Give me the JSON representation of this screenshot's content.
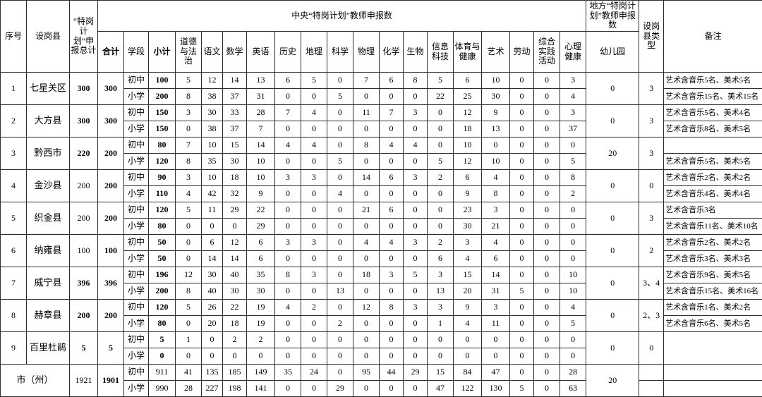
{
  "table": {
    "header": {
      "seq": "序号",
      "county": "设岗县",
      "plan_total": "“特岗计划”申报总计",
      "central_group": "中央“特岗计划”教师申报数",
      "total": "合计",
      "stage": "学段",
      "subtotal": "小计",
      "subjects": [
        "道德与法治",
        "语文",
        "数学",
        "英语",
        "历史",
        "地理",
        "科学",
        "物理",
        "化学",
        "生物",
        "信息科技",
        "体育与健康",
        "艺术",
        "劳动",
        "综合实践活动",
        "心理健康"
      ],
      "local_group": "地方“特岗计划”教师申报数",
      "kindergarten": "幼儿园",
      "county_type": "设岗县类型",
      "remarks": "备注"
    },
    "rows": [
      {
        "seq": "1",
        "county": "七星关区",
        "plan_total": "300",
        "plan_total_bold": true,
        "total": "300",
        "kindergarten": "0",
        "county_type": "3",
        "remark_merged": false,
        "stages": [
          {
            "stage": "初中",
            "subtotal": "100",
            "values": [
              "5",
              "12",
              "14",
              "13",
              "6",
              "5",
              "0",
              "7",
              "6",
              "8",
              "5",
              "6",
              "10",
              "0",
              "0",
              "3"
            ],
            "remark": "艺术含音乐5名、美术5名"
          },
          {
            "stage": "小学",
            "subtotal": "200",
            "values": [
              "8",
              "38",
              "37",
              "31",
              "0",
              "0",
              "5",
              "0",
              "0",
              "0",
              "22",
              "25",
              "30",
              "0",
              "0",
              "4"
            ],
            "remark": "艺术含音乐15名、美术15名"
          }
        ]
      },
      {
        "seq": "2",
        "county": "大方县",
        "plan_total": "300",
        "plan_total_bold": true,
        "total": "300",
        "kindergarten": "0",
        "county_type": "3",
        "remark_merged": false,
        "stages": [
          {
            "stage": "初中",
            "subtotal": "150",
            "values": [
              "3",
              "30",
              "33",
              "28",
              "7",
              "4",
              "0",
              "11",
              "7",
              "3",
              "0",
              "12",
              "9",
              "0",
              "0",
              "3"
            ],
            "remark": "艺术含音乐5名、美术4名"
          },
          {
            "stage": "小学",
            "subtotal": "150",
            "values": [
              "0",
              "38",
              "37",
              "7",
              "0",
              "0",
              "0",
              "0",
              "0",
              "0",
              "0",
              "18",
              "13",
              "0",
              "0",
              "37"
            ],
            "remark": "艺术含音乐8名、美术5名"
          }
        ]
      },
      {
        "seq": "3",
        "county": "黔西市",
        "plan_total": "220",
        "plan_total_bold": true,
        "total": "200",
        "kindergarten": "20",
        "county_type": "3",
        "remark_merged": false,
        "stages": [
          {
            "stage": "初中",
            "subtotal": "80",
            "values": [
              "7",
              "10",
              "15",
              "14",
              "4",
              "4",
              "0",
              "8",
              "4",
              "4",
              "0",
              "10",
              "0",
              "0",
              "0",
              "0"
            ],
            "remark": ""
          },
          {
            "stage": "小学",
            "subtotal": "120",
            "values": [
              "8",
              "35",
              "30",
              "10",
              "0",
              "0",
              "5",
              "0",
              "0",
              "0",
              "5",
              "12",
              "10",
              "0",
              "0",
              "5"
            ],
            "remark": "艺术含音乐5名、美术5名"
          }
        ]
      },
      {
        "seq": "4",
        "county": "金沙县",
        "plan_total": "200",
        "plan_total_bold": false,
        "total": "200",
        "kindergarten": "0",
        "county_type": "0",
        "remark_merged": false,
        "stages": [
          {
            "stage": "初中",
            "subtotal": "90",
            "values": [
              "3",
              "10",
              "18",
              "10",
              "3",
              "3",
              "0",
              "14",
              "6",
              "3",
              "2",
              "6",
              "4",
              "0",
              "0",
              "8"
            ],
            "remark": "艺术含音乐2名、美术2名"
          },
          {
            "stage": "小学",
            "subtotal": "110",
            "values": [
              "4",
              "42",
              "32",
              "9",
              "0",
              "0",
              "4",
              "0",
              "0",
              "0",
              "0",
              "9",
              "8",
              "0",
              "0",
              "2"
            ],
            "remark": "艺术含音乐4名、美术4名"
          }
        ]
      },
      {
        "seq": "5",
        "county": "织金县",
        "plan_total": "200",
        "plan_total_bold": false,
        "total": "200",
        "kindergarten": "0",
        "county_type": "3",
        "remark_merged": false,
        "stages": [
          {
            "stage": "初中",
            "subtotal": "120",
            "values": [
              "5",
              "11",
              "29",
              "22",
              "0",
              "0",
              "0",
              "21",
              "6",
              "0",
              "0",
              "23",
              "3",
              "0",
              "0",
              "0"
            ],
            "remark": "艺术含音乐3名"
          },
          {
            "stage": "小学",
            "subtotal": "80",
            "values": [
              "0",
              "0",
              "0",
              "29",
              "0",
              "0",
              "0",
              "0",
              "0",
              "0",
              "0",
              "30",
              "21",
              "0",
              "0",
              "0"
            ],
            "remark": "艺术含音乐11名、美术10名"
          }
        ]
      },
      {
        "seq": "6",
        "county": "纳雍县",
        "plan_total": "100",
        "plan_total_bold": false,
        "total": "100",
        "kindergarten": "0",
        "county_type": "2",
        "remark_merged": false,
        "stages": [
          {
            "stage": "初中",
            "subtotal": "50",
            "values": [
              "0",
              "6",
              "12",
              "6",
              "3",
              "3",
              "0",
              "4",
              "4",
              "3",
              "2",
              "3",
              "4",
              "0",
              "0",
              "0"
            ],
            "remark": "艺术含音乐2名、美术2名"
          },
          {
            "stage": "小学",
            "subtotal": "50",
            "values": [
              "0",
              "14",
              "14",
              "6",
              "0",
              "0",
              "0",
              "0",
              "0",
              "0",
              "6",
              "4",
              "6",
              "0",
              "0",
              "0"
            ],
            "remark": "艺术含音乐3名、美术3名"
          }
        ]
      },
      {
        "seq": "7",
        "county": "威宁县",
        "plan_total": "396",
        "plan_total_bold": true,
        "total": "396",
        "kindergarten": "0",
        "county_type": "3、4",
        "remark_merged": false,
        "stages": [
          {
            "stage": "初中",
            "subtotal": "196",
            "values": [
              "12",
              "30",
              "40",
              "35",
              "8",
              "3",
              "0",
              "18",
              "3",
              "5",
              "3",
              "15",
              "14",
              "0",
              "0",
              "10"
            ],
            "remark": "艺术含音乐9名、美术5名"
          },
          {
            "stage": "小学",
            "subtotal": "200",
            "values": [
              "8",
              "40",
              "30",
              "30",
              "0",
              "0",
              "13",
              "0",
              "0",
              "0",
              "13",
              "20",
              "31",
              "5",
              "0",
              "10"
            ],
            "remark": "艺术含音乐15名、美术16名"
          }
        ]
      },
      {
        "seq": "8",
        "county": "赫章县",
        "plan_total": "200",
        "plan_total_bold": true,
        "total": "200",
        "kindergarten": "0",
        "county_type": "2、3",
        "remark_merged": false,
        "stages": [
          {
            "stage": "初中",
            "subtotal": "120",
            "values": [
              "5",
              "26",
              "22",
              "19",
              "4",
              "2",
              "0",
              "12",
              "8",
              "3",
              "3",
              "9",
              "3",
              "0",
              "0",
              "4"
            ],
            "remark": "艺术含音乐1名、美术2名"
          },
          {
            "stage": "小学",
            "subtotal": "80",
            "values": [
              "0",
              "20",
              "18",
              "19",
              "0",
              "0",
              "2",
              "0",
              "0",
              "0",
              "1",
              "4",
              "11",
              "0",
              "0",
              "5"
            ],
            "remark": "艺术含音乐6名、美术5名"
          }
        ]
      },
      {
        "seq": "9",
        "county": "百里杜鹃",
        "plan_total": "5",
        "plan_total_bold": true,
        "total": "5",
        "kindergarten": "0",
        "county_type": "0",
        "remark_merged": true,
        "stages": [
          {
            "stage": "初中",
            "subtotal": "5",
            "values": [
              "1",
              "0",
              "2",
              "2",
              "0",
              "0",
              "0",
              "0",
              "0",
              "0",
              "0",
              "0",
              "0",
              "0",
              "0",
              "0"
            ],
            "remark": ""
          },
          {
            "stage": "小学",
            "subtotal": "0",
            "values": [
              "0",
              "0",
              "0",
              "0",
              "0",
              "0",
              "0",
              "0",
              "0",
              "0",
              "0",
              "0",
              "0",
              "0",
              "0",
              "0"
            ],
            "remark": ""
          }
        ]
      }
    ],
    "total_row": {
      "label": "市（州）",
      "plan_total": "1921",
      "total": "1901",
      "kindergarten": "20",
      "stages": [
        {
          "stage": "初中",
          "subtotal": "911",
          "values": [
            "41",
            "135",
            "185",
            "149",
            "35",
            "24",
            "0",
            "95",
            "44",
            "29",
            "15",
            "84",
            "47",
            "0",
            "0",
            "28"
          ],
          "county_type": "",
          "remark": ""
        },
        {
          "stage": "小学",
          "subtotal": "990",
          "values": [
            "28",
            "227",
            "198",
            "141",
            "0",
            "0",
            "29",
            "0",
            "0",
            "0",
            "47",
            "122",
            "130",
            "5",
            "0",
            "63"
          ],
          "county_type": "",
          "remark": ""
        }
      ]
    }
  },
  "colors": {
    "border": "#2e2e2e",
    "background": "#ffffff",
    "text": "#000000"
  }
}
